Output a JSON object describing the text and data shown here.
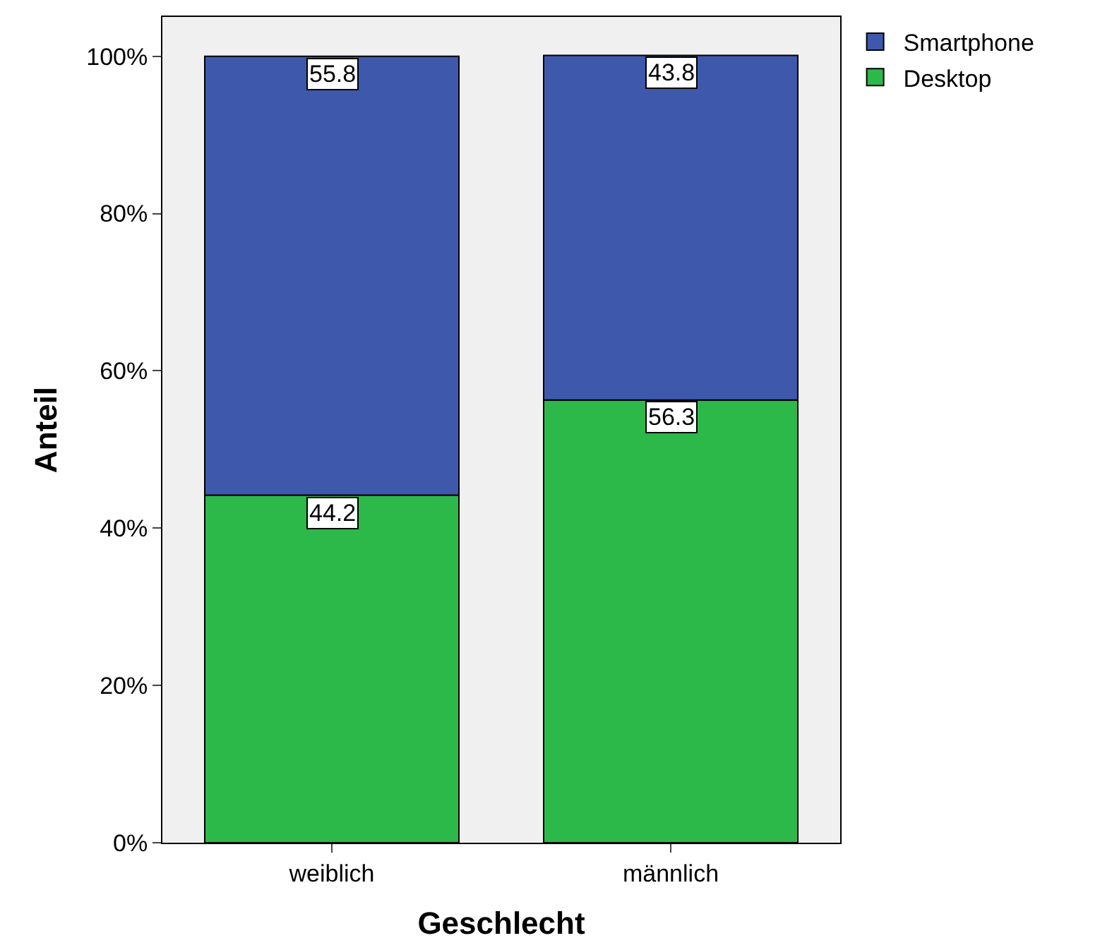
{
  "chart_data": {
    "type": "bar",
    "stacked": true,
    "xlabel": "Geschlecht",
    "ylabel": "Anteil",
    "categories": [
      "weiblich",
      "männlich"
    ],
    "series": [
      {
        "name": "Desktop",
        "color": "#2db84a",
        "values": [
          44.2,
          56.3
        ]
      },
      {
        "name": "Smartphone",
        "color": "#3e58ac",
        "values": [
          55.8,
          43.8
        ]
      }
    ],
    "ylim": [
      0,
      105
    ],
    "yticks": [
      {
        "value": 0,
        "label": "0%"
      },
      {
        "value": 20,
        "label": "20%"
      },
      {
        "value": 40,
        "label": "40%"
      },
      {
        "value": 60,
        "label": "60%"
      },
      {
        "value": 80,
        "label": "80%"
      },
      {
        "value": 100,
        "label": "100%"
      }
    ],
    "data_labels": true,
    "grid": false,
    "legend": "top right"
  }
}
